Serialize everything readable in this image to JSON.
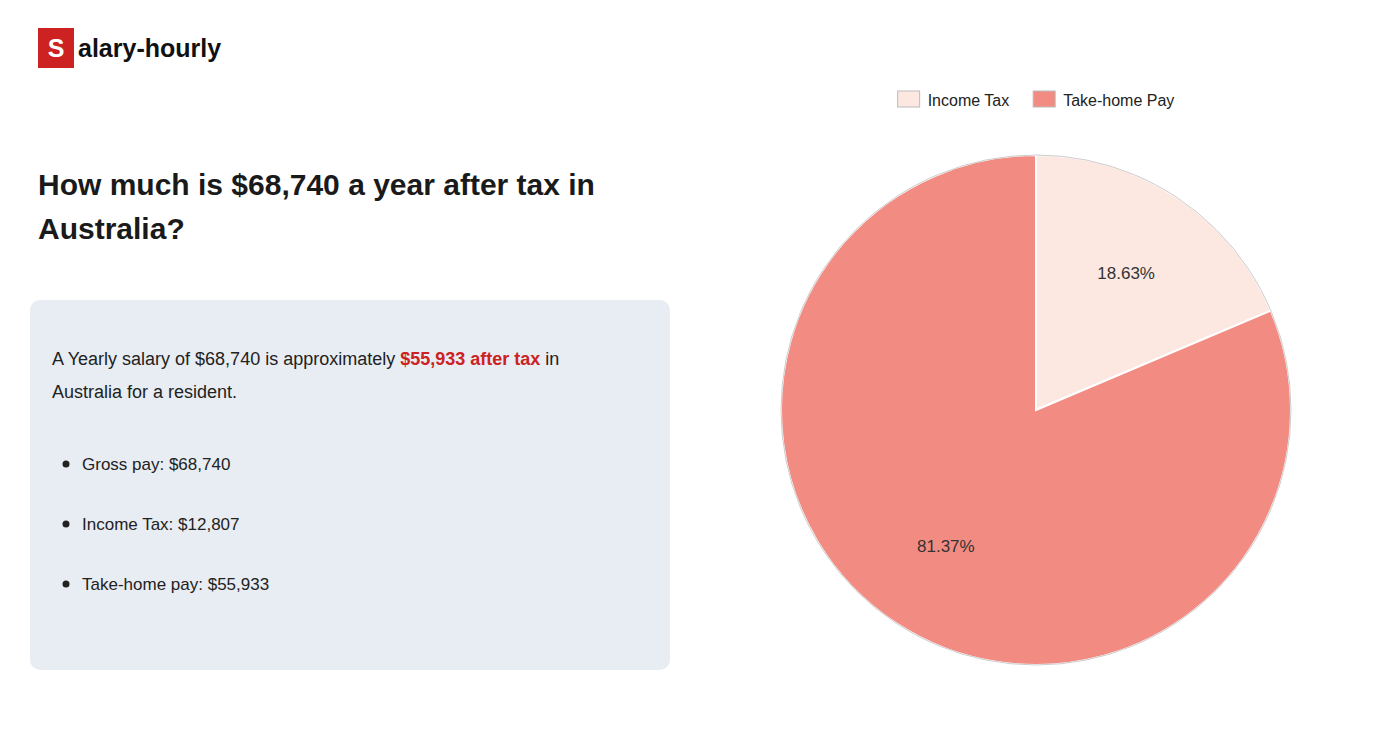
{
  "chart_data": {
    "type": "pie",
    "title": [
      "How much is $68,740 a year after tax in",
      "Australia?"
    ],
    "annotations": {
      "logo": {
        "text": [
          "S",
          "alary-hourly"
        ],
        "color": "#cc2222"
      },
      "summary": {
        "text": [
          "A Yearly salary of $68,740 is approximately ",
          "$55,933 after tax",
          " in",
          "Australia for a resident."
        ],
        "color": "#cc2222"
      },
      "bullets": [
        "Gross pay: $68,740",
        "Income Tax: $12,807",
        "Take-home pay: $55,933"
      ]
    },
    "categories": [
      "Income Tax",
      "Take-home Pay"
    ],
    "values": [
      18.63,
      81.37
    ],
    "value_labels": [
      "18.63%",
      "81.37%"
    ],
    "colors": [
      "#fce8e0",
      "#f28b82"
    ],
    "data_labels": true,
    "legend": "top"
  }
}
